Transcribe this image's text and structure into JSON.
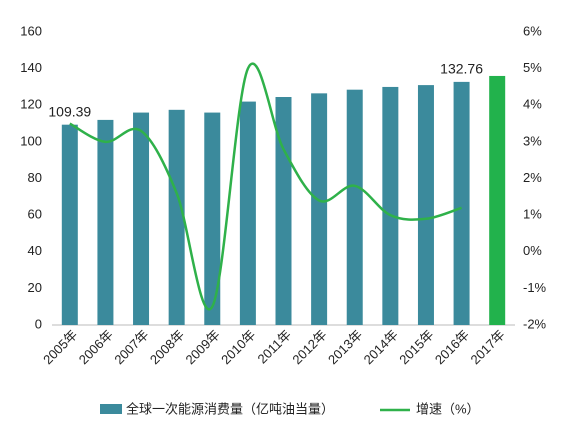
{
  "chart_data": {
    "type": "bar_line",
    "categories": [
      "2005年",
      "2006年",
      "2007年",
      "2008年",
      "2009年",
      "2010年",
      "2011年",
      "2012年",
      "2013年",
      "2014年",
      "2015年",
      "2016年",
      "2017年"
    ],
    "series": [
      {
        "name": "全球一次能源消费量（亿吨油当量）",
        "type": "bar",
        "color": "#3b8a9c",
        "colors": [
          "#3b8a9c",
          "#3b8a9c",
          "#3b8a9c",
          "#3b8a9c",
          "#3b8a9c",
          "#3b8a9c",
          "#3b8a9c",
          "#3b8a9c",
          "#3b8a9c",
          "#3b8a9c",
          "#3b8a9c",
          "#3b8a9c",
          "#22b24c"
        ],
        "values": [
          109.39,
          112,
          116,
          117.5,
          116,
          122,
          124.5,
          126.5,
          128.5,
          130,
          131,
          132.76,
          136
        ],
        "value_labels": [
          "109.39",
          null,
          null,
          null,
          null,
          null,
          null,
          null,
          null,
          null,
          null,
          "132.76",
          null
        ]
      },
      {
        "name": "增速（%）",
        "type": "line",
        "axis": "y2",
        "color": "#2fb14a",
        "values": [
          3.5,
          3.0,
          3.3,
          1.6,
          -1.5,
          5.0,
          2.8,
          1.4,
          1.8,
          1.0,
          0.9,
          1.2,
          null
        ]
      }
    ],
    "ylim": [
      0,
      160
    ],
    "yticks": [
      0,
      20,
      40,
      60,
      80,
      100,
      120,
      140,
      160
    ],
    "y2lim": [
      -2,
      6
    ],
    "y2ticks": [
      {
        "value": -2,
        "label": "-2%"
      },
      {
        "value": -1,
        "label": "-1%"
      },
      {
        "value": 0,
        "label": "0%"
      },
      {
        "value": 1,
        "label": "1%"
      },
      {
        "value": 2,
        "label": "2%"
      },
      {
        "value": 3,
        "label": "3%"
      },
      {
        "value": 4,
        "label": "4%"
      },
      {
        "value": 5,
        "label": "5%"
      },
      {
        "value": 6,
        "label": "6%"
      }
    ],
    "grid": false
  }
}
